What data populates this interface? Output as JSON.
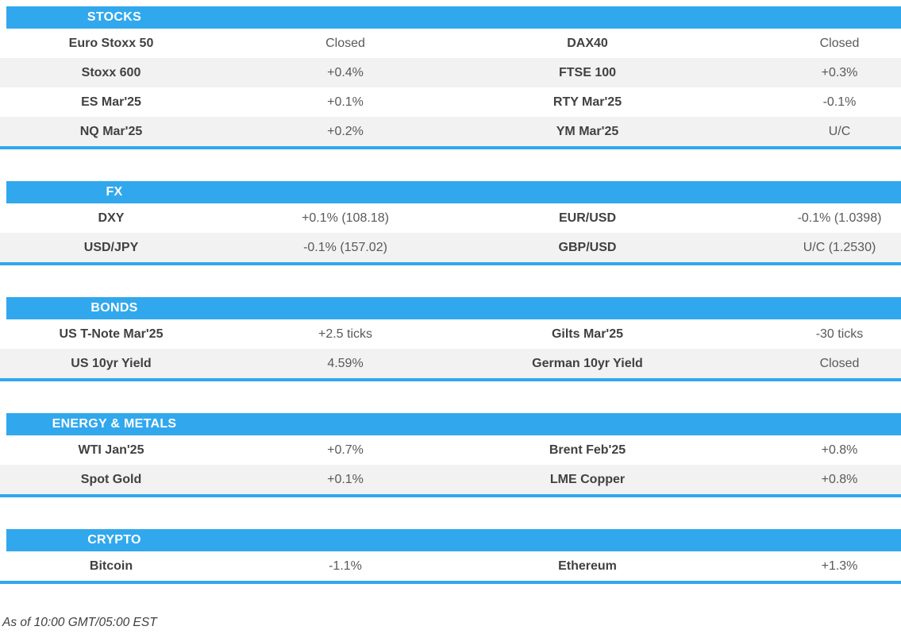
{
  "colors": {
    "accent": "#31A8ED",
    "row_alt": "#F2F2F2",
    "header_text": "#FFFFFF",
    "label_text": "#414042",
    "value_text": "#58595B"
  },
  "sections": [
    {
      "title": "STOCKS",
      "rows": [
        {
          "l1": "Euro Stoxx 50",
          "v1": "Closed",
          "l2": "DAX40",
          "v2": "Closed"
        },
        {
          "l1": "Stoxx 600",
          "v1": "+0.4%",
          "l2": "FTSE 100",
          "v2": "+0.3%"
        },
        {
          "l1": "ES Mar'25",
          "v1": "+0.1%",
          "l2": "RTY Mar'25",
          "v2": "-0.1%"
        },
        {
          "l1": "NQ Mar'25",
          "v1": "+0.2%",
          "l2": "YM Mar'25",
          "v2": "U/C"
        }
      ]
    },
    {
      "title": "FX",
      "rows": [
        {
          "l1": "DXY",
          "v1": "+0.1% (108.18)",
          "l2": "EUR/USD",
          "v2": "-0.1% (1.0398)"
        },
        {
          "l1": "USD/JPY",
          "v1": "-0.1% (157.02)",
          "l2": "GBP/USD",
          "v2": "U/C (1.2530)"
        }
      ]
    },
    {
      "title": "BONDS",
      "rows": [
        {
          "l1": "US T-Note Mar'25",
          "v1": "+2.5 ticks",
          "l2": "Gilts Mar'25",
          "v2": "-30 ticks"
        },
        {
          "l1": "US 10yr Yield",
          "v1": "4.59%",
          "l2": "German 10yr Yield",
          "v2": "Closed"
        }
      ]
    },
    {
      "title": "ENERGY & METALS",
      "rows": [
        {
          "l1": "WTI Jan'25",
          "v1": "+0.7%",
          "l2": "Brent Feb'25",
          "v2": "+0.8%"
        },
        {
          "l1": "Spot Gold",
          "v1": "+0.1%",
          "l2": "LME Copper",
          "v2": "+0.8%"
        }
      ]
    },
    {
      "title": "CRYPTO",
      "rows": [
        {
          "l1": "Bitcoin",
          "v1": "-1.1%",
          "l2": "Ethereum",
          "v2": "+1.3%"
        }
      ]
    }
  ],
  "footer": {
    "as_of": "As of 10:00 GMT/05:00 EST"
  }
}
